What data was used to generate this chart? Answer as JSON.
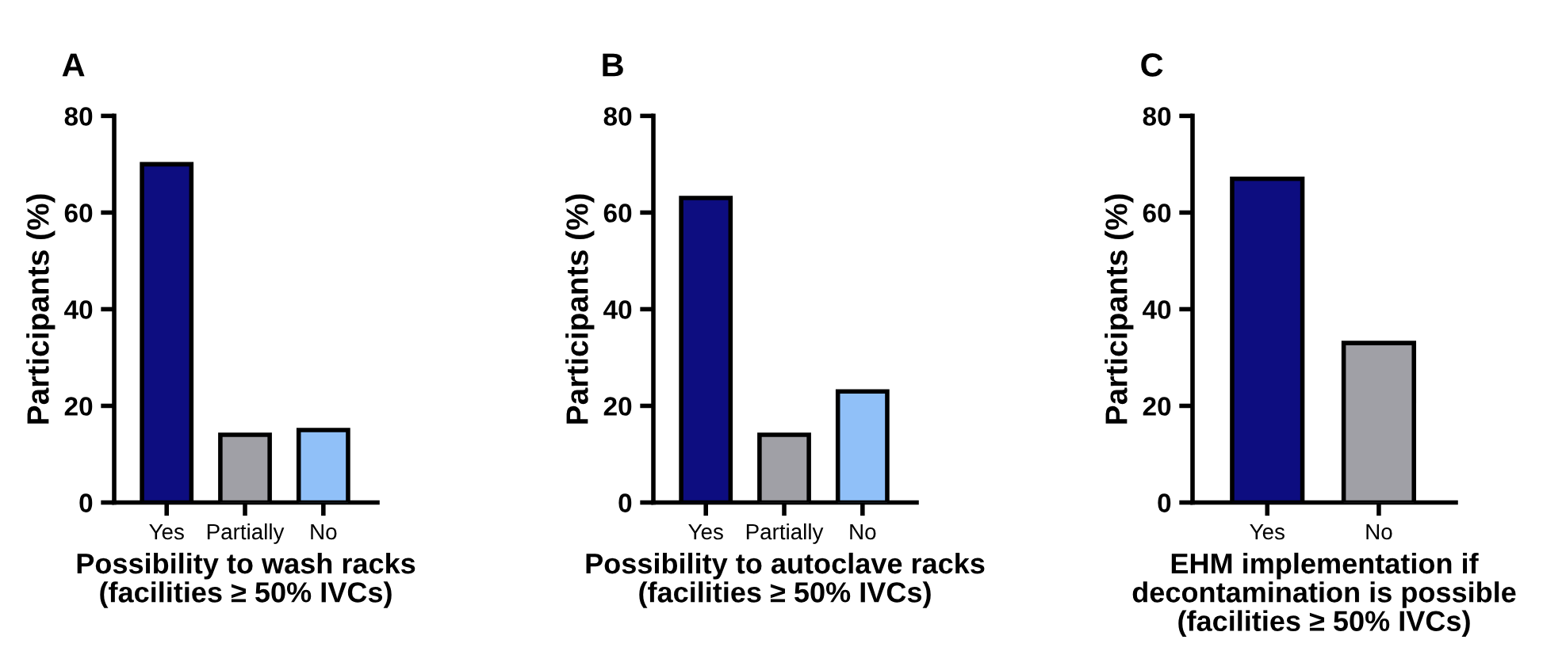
{
  "chart_data": [
    {
      "type": "bar",
      "title": "A",
      "ylabel": "Participants (%)",
      "xlabel": "Possibility to wash racks\n(facilities ≥ 50% IVCs)",
      "categories": [
        "Yes",
        "Partially",
        "No"
      ],
      "values": [
        70,
        14,
        15
      ],
      "colors": [
        "#0d0d80",
        "#a0a0a6",
        "#90c0f8"
      ],
      "ylim": [
        0,
        80
      ],
      "yticks": [
        0,
        20,
        40,
        60,
        80
      ],
      "grid": false,
      "legend": false
    },
    {
      "type": "bar",
      "title": "B",
      "ylabel": "Participants (%)",
      "xlabel": "Possibility to autoclave racks\n(facilities ≥ 50% IVCs)",
      "categories": [
        "Yes",
        "Partially",
        "No"
      ],
      "values": [
        63,
        14,
        23
      ],
      "colors": [
        "#0d0d80",
        "#a0a0a6",
        "#90c0f8"
      ],
      "ylim": [
        0,
        80
      ],
      "yticks": [
        0,
        20,
        40,
        60,
        80
      ],
      "grid": false,
      "legend": false
    },
    {
      "type": "bar",
      "title": "C",
      "ylabel": "Participants (%)",
      "xlabel": "EHM implementation if\ndecontamination is possible\n(facilities ≥ 50% IVCs)",
      "categories": [
        "Yes",
        "No"
      ],
      "values": [
        67,
        33
      ],
      "colors": [
        "#0d0d80",
        "#a0a0a6"
      ],
      "ylim": [
        0,
        80
      ],
      "yticks": [
        0,
        20,
        40,
        60,
        80
      ],
      "grid": false,
      "legend": false
    }
  ]
}
